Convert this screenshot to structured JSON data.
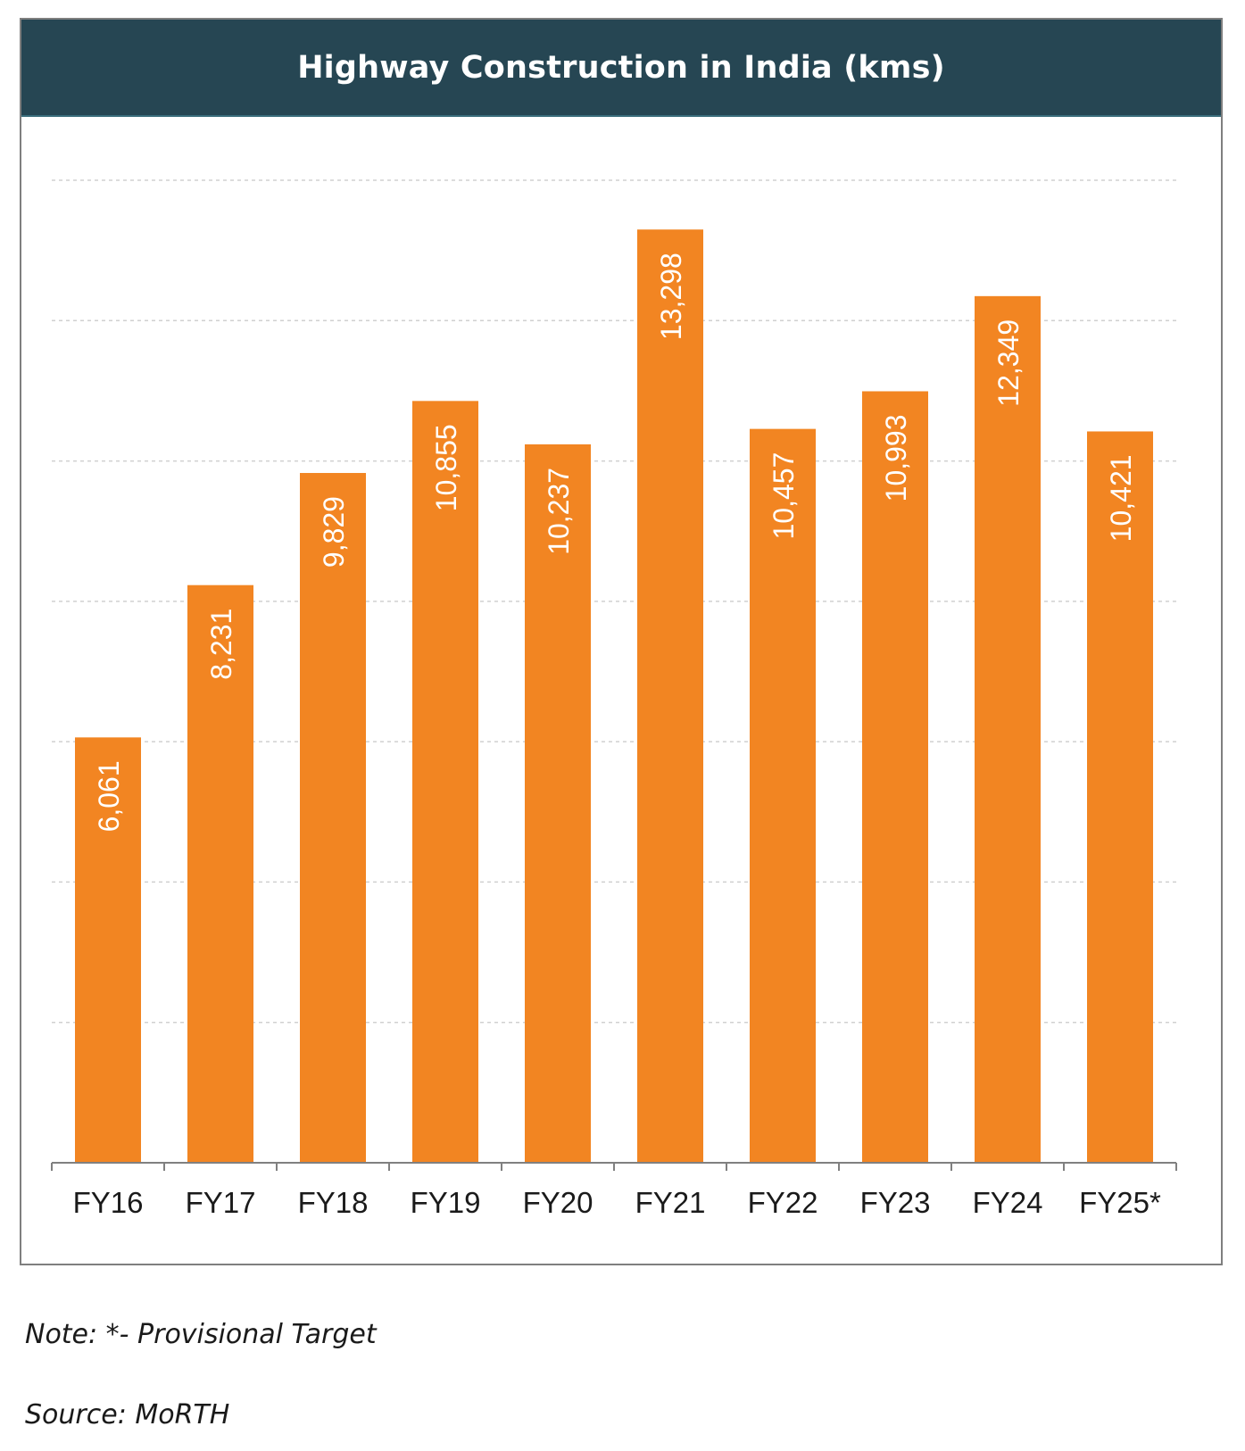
{
  "chart_data": {
    "type": "bar",
    "title": "Highway Construction in India (kms)",
    "xlabel": "",
    "ylabel": "",
    "categories": [
      "FY16",
      "FY17",
      "FY18",
      "FY19",
      "FY20",
      "FY21",
      "FY22",
      "FY23",
      "FY24",
      "FY25*"
    ],
    "values": [
      6061,
      8231,
      9829,
      10855,
      10237,
      13298,
      10457,
      10993,
      12349,
      10421
    ],
    "data_labels": [
      "6,061",
      "8,231",
      "9,829",
      "10,855",
      "10,237",
      "13,298",
      "10,457",
      "10,993",
      "12,349",
      "10,421"
    ],
    "ylim": [
      0,
      14000
    ],
    "y_gridline_step": 2000,
    "grid": true,
    "grid_style": "dashed",
    "bar_color": "#f28522",
    "title_bar_color": "#264653",
    "legend": "none"
  },
  "footer": {
    "note": "Note:  *- Provisional Target",
    "source": "Source: MoRTH"
  }
}
